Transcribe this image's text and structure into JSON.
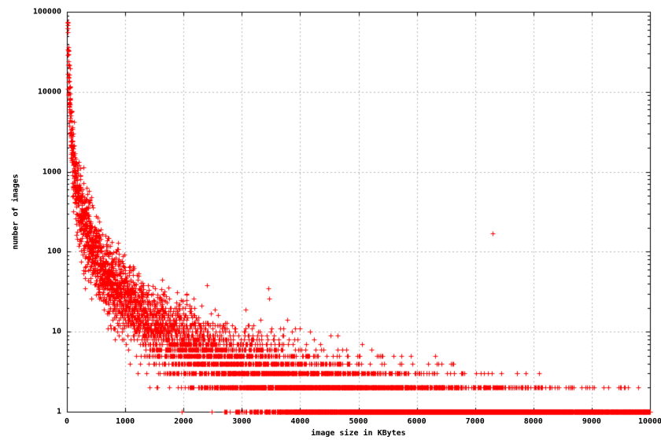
{
  "chart_data": {
    "type": "scatter",
    "title": "",
    "xlabel": "image size in KBytes",
    "ylabel": "number of images",
    "xlim": [
      0,
      10000
    ],
    "ylim": [
      1,
      100000
    ],
    "x_scale": "linear",
    "y_scale": "log",
    "grid": true,
    "legend": "none",
    "x_ticks": [
      0,
      1000,
      2000,
      3000,
      4000,
      5000,
      6000,
      7000,
      8000,
      9000,
      10000
    ],
    "x_tick_labels": [
      "0",
      "1000",
      "2000",
      "3000",
      "4000",
      "5000",
      "6000",
      "7000",
      "8000",
      "9000",
      "10000"
    ],
    "y_ticks": [
      1,
      10,
      100,
      1000,
      10000,
      100000
    ],
    "y_tick_labels": [
      "1",
      "10",
      "100",
      "1000",
      "10000",
      "100000"
    ],
    "marker": {
      "symbol": "+",
      "color": "#ff0000",
      "size": 7
    },
    "distribution": {
      "model": "power_law_lognormal",
      "description": "count-per-KB histogram of image sizes: n(x) = round(A * x^-alpha * exp(sigma*N(0,1))), plotted only where n >= 1",
      "amplitude": 6300000,
      "exponent": 1.8,
      "sigma": 0.55,
      "x_min": 1,
      "x_max": 10000,
      "x_step": 1,
      "seed": 1234,
      "min_count": 1
    },
    "outlier_points": [
      [
        7300,
        170
      ],
      [
        850,
        100
      ],
      [
        2400,
        38
      ],
      [
        3450,
        35
      ],
      [
        3470,
        26
      ],
      [
        2050,
        30
      ]
    ]
  },
  "layout_text": {
    "note": ""
  },
  "colors": {
    "background": "#ffffff",
    "grid": "#b8b8b8",
    "axis": "#000000",
    "marker": "#ff0000",
    "text": "#000000"
  }
}
